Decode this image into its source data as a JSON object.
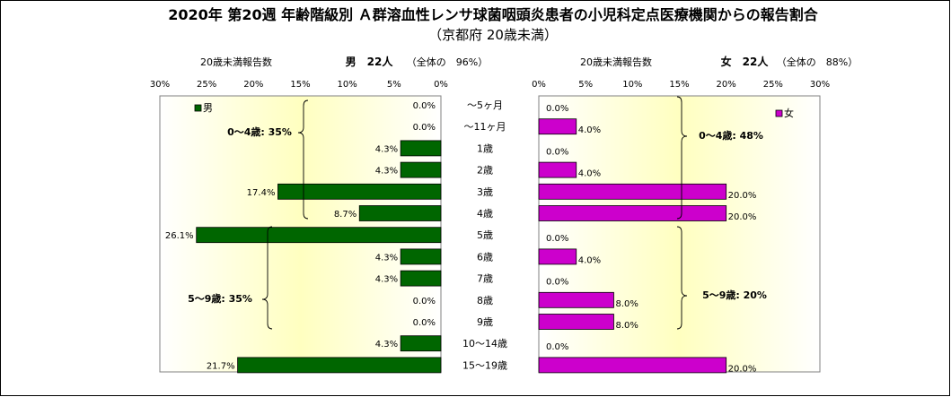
{
  "title": "2020年 第20週 年齢階級別 Ａ群溶血性レンサ球菌咽頭炎患者の小児科定点医療機関からの報告割合",
  "subtitle": "（京都府 20歳未満）",
  "colors": {
    "male_bar": "#006600",
    "female_bar": "#cc00cc",
    "bar_edge": "#000000",
    "gradient_center": "#ffffc0",
    "gradient_edge": "#ffffff"
  },
  "chart_data": [
    {
      "type": "bar",
      "orientation": "horizontal",
      "side": "male",
      "header_label": "20歳未満報告数",
      "header": "男　22人",
      "header_note": "（全体の　96%）",
      "legend": "男",
      "categories": [
        "～5ヶ月",
        "～11ヶ月",
        "1歳",
        "2歳",
        "3歳",
        "4歳",
        "5歳",
        "6歳",
        "7歳",
        "8歳",
        "9歳",
        "10～14歳",
        "15～19歳"
      ],
      "values": [
        0.0,
        0.0,
        4.3,
        4.3,
        17.4,
        8.7,
        26.1,
        4.3,
        4.3,
        0.0,
        0.0,
        4.3,
        21.7
      ],
      "data_labels": [
        "0.0%",
        "0.0%",
        "4.3%",
        "4.3%",
        "17.4%",
        "8.7%",
        "26.1%",
        "4.3%",
        "4.3%",
        "0.0%",
        "0.0%",
        "4.3%",
        "21.7%"
      ],
      "xlim": [
        0,
        30
      ],
      "x_reversed": true,
      "ticks": [
        "30%",
        "25%",
        "20%",
        "15%",
        "10%",
        "5%",
        "0%"
      ],
      "groups": [
        {
          "label": "0～4歳: 35%"
        },
        {
          "label": "5～9歳: 35%"
        }
      ]
    },
    {
      "type": "bar",
      "orientation": "horizontal",
      "side": "female",
      "header_label": "20歳未満報告数",
      "header": "女　22人",
      "header_note": "（全体の　88%）",
      "legend": "女",
      "categories": [
        "～5ヶ月",
        "～11ヶ月",
        "1歳",
        "2歳",
        "3歳",
        "4歳",
        "5歳",
        "6歳",
        "7歳",
        "8歳",
        "9歳",
        "10～14歳",
        "15～19歳"
      ],
      "values": [
        0.0,
        4.0,
        0.0,
        4.0,
        20.0,
        20.0,
        0.0,
        4.0,
        0.0,
        8.0,
        8.0,
        0.0,
        20.0
      ],
      "data_labels": [
        "0.0%",
        "4.0%",
        "0.0%",
        "4.0%",
        "20.0%",
        "20.0%",
        "0.0%",
        "4.0%",
        "0.0%",
        "8.0%",
        "8.0%",
        "0.0%",
        "20.0%"
      ],
      "xlim": [
        0,
        30
      ],
      "x_reversed": false,
      "ticks": [
        "0%",
        "5%",
        "10%",
        "15%",
        "20%",
        "25%",
        "30%"
      ],
      "groups": [
        {
          "label": "0～4歳: 48%"
        },
        {
          "label": "5～9歳: 20%"
        }
      ]
    }
  ]
}
